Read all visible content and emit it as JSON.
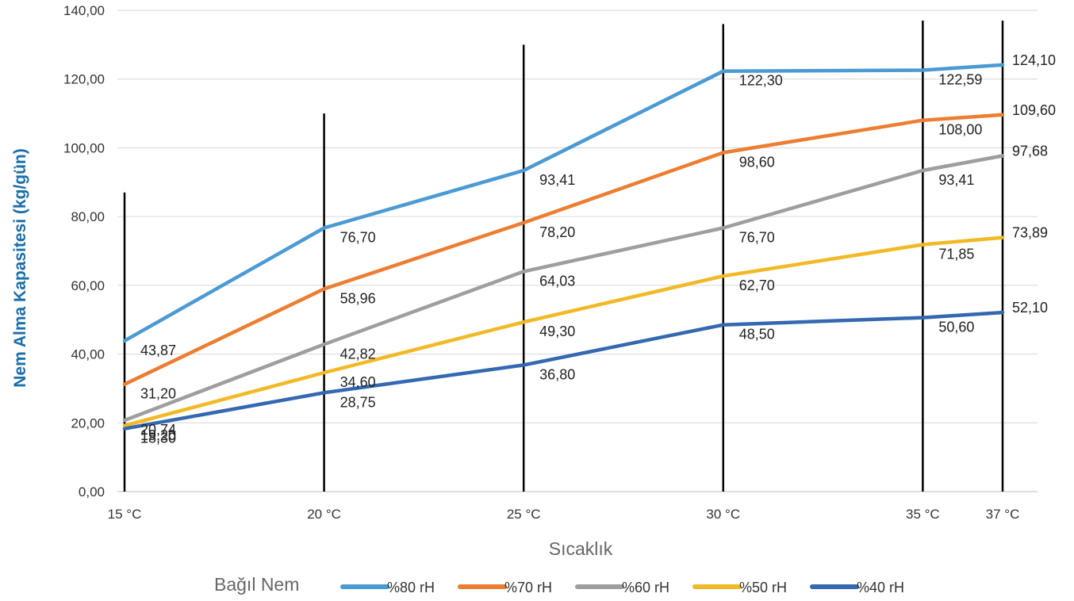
{
  "chart_data": {
    "type": "line",
    "title": "",
    "xlabel": "Sıcaklık",
    "ylabel": "Nem Alma Kapasitesi (kg/gün)",
    "categories": [
      "15 °C",
      "20 °C",
      "25 °C",
      "30 °C",
      "35 °C",
      "37 °C"
    ],
    "x": [
      15,
      20,
      25,
      30,
      35,
      37
    ],
    "yticks": [
      "0,00",
      "20,00",
      "40,00",
      "60,00",
      "80,00",
      "100,00",
      "120,00",
      "140,00"
    ],
    "ylim": [
      0,
      140
    ],
    "grid": "horizontal",
    "legend_title": "Bağıl Nem",
    "legend_position": "bottom",
    "vertical_bars": [
      {
        "category": "15 °C",
        "top": 87
      },
      {
        "category": "20 °C",
        "top": 110
      },
      {
        "category": "25 °C",
        "top": 130
      },
      {
        "category": "30 °C",
        "top": 136
      },
      {
        "category": "35 °C",
        "top": 137
      },
      {
        "category": "37 °C",
        "top": 137
      }
    ],
    "series": [
      {
        "name": "%80 rH",
        "color": "#4a9ad4",
        "values": [
          43.87,
          76.7,
          93.41,
          122.3,
          122.59,
          124.1
        ],
        "labels": [
          "43,87",
          "76,70",
          "93,41",
          "122,30",
          "122,59",
          "124,10"
        ]
      },
      {
        "name": "%70 rH",
        "color": "#ed7d31",
        "values": [
          31.2,
          58.96,
          78.2,
          98.6,
          108.0,
          109.6
        ],
        "labels": [
          "31,20",
          "58,96",
          "78,20",
          "98,60",
          "108,00",
          "109,60"
        ]
      },
      {
        "name": "%60 rH",
        "color": "#9e9e9e",
        "values": [
          20.74,
          42.82,
          64.03,
          76.7,
          93.41,
          97.68
        ],
        "labels": [
          "20,74",
          "42,82",
          "64,03",
          "76,70",
          "93,41",
          "97,68"
        ]
      },
      {
        "name": "%50 rH",
        "color": "#f2b926",
        "values": [
          19.2,
          34.6,
          49.3,
          62.7,
          71.85,
          73.89
        ],
        "labels": [
          "19,20",
          "34,60",
          "49,30",
          "62,70",
          "71,85",
          "73,89"
        ]
      },
      {
        "name": "%40 rH",
        "color": "#3468b0",
        "values": [
          18.3,
          28.75,
          36.8,
          48.5,
          50.6,
          52.1
        ],
        "labels": [
          "18,30",
          "28,75",
          "36,80",
          "48,50",
          "50,60",
          "52,10"
        ]
      }
    ]
  },
  "style": {
    "ylabel_color": "#1a6ea8",
    "grid_color": "#d6d6d6",
    "bar_color": "#000000"
  }
}
